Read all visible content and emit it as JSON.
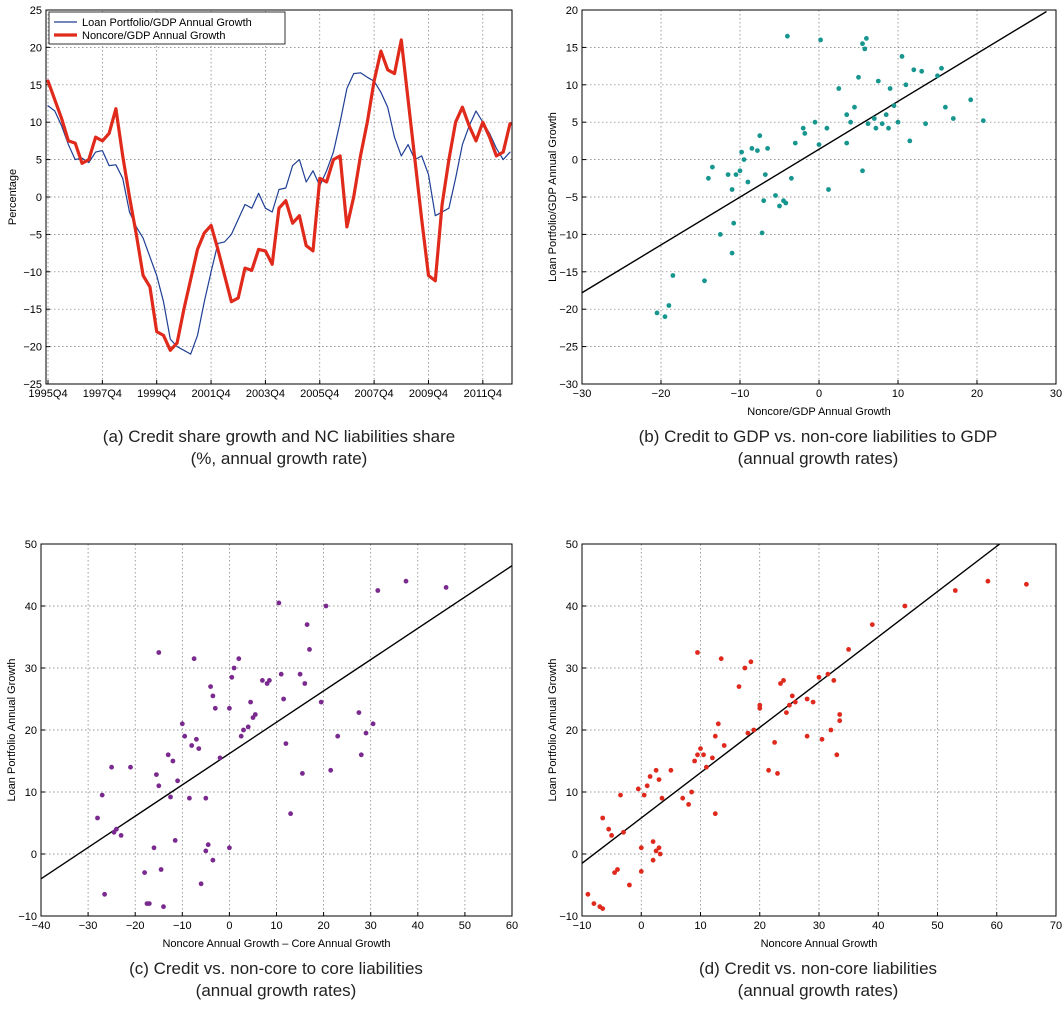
{
  "chart_data": [
    {
      "id": "a",
      "type": "line",
      "caption_lines": [
        "(a) Credit share growth and NC liabilities share",
        "(%, annual growth rate)"
      ],
      "title": "",
      "xlabel": "",
      "ylabel": "Percentage",
      "ylim": [
        -25,
        25
      ],
      "yticks": [
        -25,
        -20,
        -15,
        -10,
        -5,
        0,
        5,
        10,
        15,
        20,
        25
      ],
      "x_tick_labels": [
        "1995Q4",
        "1997Q4",
        "1999Q4",
        "2001Q4",
        "2003Q4",
        "2005Q4",
        "2007Q4",
        "2009Q4",
        "2011Q4"
      ],
      "legend_position": "top-left",
      "grid": true,
      "series": [
        {
          "name": "Loan Portfolio/GDP Annual Growth",
          "color": "#1f3f95",
          "values": [
            12.2,
            11.5,
            9.5,
            7.0,
            5.0,
            5.2,
            4.6,
            6.0,
            6.2,
            4.2,
            4.3,
            2.5,
            -2.0,
            -4.0,
            -5.5,
            -8.0,
            -10.5,
            -14.0,
            -19.0,
            -20.0,
            -20.5,
            -21.0,
            -18.5,
            -14.0,
            -10.0,
            -6.2,
            -6.0,
            -5.0,
            -3.0,
            -1.0,
            -1.5,
            0.5,
            -1.5,
            -2.0,
            1.0,
            1.2,
            4.2,
            5.0,
            2.0,
            3.5,
            1.5,
            3.5,
            6.0,
            10.0,
            14.5,
            16.5,
            16.6,
            16.0,
            15.5,
            14.0,
            12.0,
            8.0,
            5.5,
            7.0,
            5.0,
            5.5,
            3.0,
            -2.5,
            -2.0,
            -1.5,
            2.5,
            7.0,
            9.5,
            11.5,
            10.0,
            8.5,
            6.5,
            5.0,
            6.0
          ]
        },
        {
          "name": "Noncore/GDP Annual Growth",
          "color": "#e02a1b",
          "values": [
            15.5,
            13.0,
            10.5,
            7.5,
            7.2,
            4.5,
            5.0,
            8.0,
            7.5,
            8.5,
            11.8,
            5.5,
            0.0,
            -5.0,
            -10.5,
            -12.0,
            -18.0,
            -18.5,
            -20.5,
            -19.5,
            -15.0,
            -11.0,
            -7.0,
            -4.8,
            -3.8,
            -7.0,
            -10.5,
            -14.0,
            -13.5,
            -9.5,
            -9.8,
            -7.0,
            -7.2,
            -9.0,
            -1.5,
            -0.5,
            -3.5,
            -2.5,
            -6.5,
            -7.2,
            2.5,
            2.0,
            5.0,
            5.5,
            -4.0,
            0.0,
            5.5,
            10.0,
            15.5,
            19.5,
            17.0,
            16.5,
            21.0,
            13.0,
            5.0,
            -3.0,
            -10.5,
            -11.2,
            -1.0,
            5.0,
            10.0,
            12.0,
            9.5,
            7.5,
            10.0,
            8.0,
            5.5,
            6.0,
            9.8
          ]
        }
      ]
    },
    {
      "id": "b",
      "type": "scatter",
      "caption_lines": [
        "(b) Credit to GDP vs. non-core liabilities to GDP",
        "(annual growth rates)"
      ],
      "title": "",
      "xlabel": "Noncore/GDP Annual Growth",
      "ylabel": "Loan Portfolio/GDP Annual Growth",
      "xlim": [
        -30,
        30
      ],
      "ylim": [
        -30,
        20
      ],
      "xticks": [
        -30,
        -20,
        -10,
        0,
        10,
        20,
        30
      ],
      "yticks": [
        -30,
        -25,
        -20,
        -15,
        -10,
        -5,
        0,
        5,
        10,
        15,
        20
      ],
      "grid": true,
      "marker_color": "#16968e",
      "fit_line": [
        [
          -30,
          -17.8
        ],
        [
          28.8,
          19.8
        ]
      ],
      "points": [
        [
          -20.5,
          -20.5
        ],
        [
          -19.5,
          -21.0
        ],
        [
          -19.0,
          -19.5
        ],
        [
          -18.5,
          -15.5
        ],
        [
          -14.5,
          -16.2
        ],
        [
          -14.0,
          -2.5
        ],
        [
          -13.5,
          -1.0
        ],
        [
          -12.5,
          -10.0
        ],
        [
          -11.5,
          -2.0
        ],
        [
          -11.0,
          -12.5
        ],
        [
          -11.0,
          -4.0
        ],
        [
          -10.8,
          -8.5
        ],
        [
          -10.5,
          -2.0
        ],
        [
          -10.0,
          -1.5
        ],
        [
          -9.8,
          1.0
        ],
        [
          -9.5,
          0.0
        ],
        [
          -9.0,
          -3.0
        ],
        [
          -8.5,
          1.5
        ],
        [
          -7.8,
          1.2
        ],
        [
          -7.5,
          3.2
        ],
        [
          -7.2,
          -9.8
        ],
        [
          -7.0,
          -5.5
        ],
        [
          -6.8,
          -2.0
        ],
        [
          -6.5,
          1.5
        ],
        [
          -5.5,
          -4.8
        ],
        [
          -5.0,
          -6.2
        ],
        [
          -4.5,
          -5.5
        ],
        [
          -4.2,
          -5.8
        ],
        [
          -4.0,
          16.5
        ],
        [
          -3.5,
          -2.5
        ],
        [
          -3.0,
          2.2
        ],
        [
          -2.0,
          4.2
        ],
        [
          -1.8,
          3.5
        ],
        [
          -0.5,
          5.0
        ],
        [
          0.0,
          2.0
        ],
        [
          0.2,
          16.0
        ],
        [
          1.0,
          4.2
        ],
        [
          1.2,
          -4.0
        ],
        [
          2.5,
          9.5
        ],
        [
          3.5,
          2.2
        ],
        [
          3.5,
          6.0
        ],
        [
          4.0,
          5.0
        ],
        [
          4.5,
          7.0
        ],
        [
          5.0,
          11.0
        ],
        [
          5.5,
          15.5
        ],
        [
          5.8,
          14.8
        ],
        [
          5.5,
          -1.5
        ],
        [
          6.0,
          16.2
        ],
        [
          6.2,
          4.8
        ],
        [
          7.0,
          5.5
        ],
        [
          7.2,
          4.2
        ],
        [
          7.5,
          10.5
        ],
        [
          8.0,
          4.8
        ],
        [
          8.5,
          6.0
        ],
        [
          8.8,
          4.2
        ],
        [
          9.0,
          9.5
        ],
        [
          9.5,
          7.2
        ],
        [
          10.0,
          5.0
        ],
        [
          10.5,
          13.8
        ],
        [
          11.0,
          10.0
        ],
        [
          11.5,
          2.5
        ],
        [
          12.0,
          12.0
        ],
        [
          13.0,
          11.8
        ],
        [
          13.5,
          4.8
        ],
        [
          15.0,
          11.2
        ],
        [
          15.5,
          12.2
        ],
        [
          16.0,
          7.0
        ],
        [
          17.0,
          5.5
        ],
        [
          19.2,
          8.0
        ],
        [
          20.8,
          5.2
        ]
      ]
    },
    {
      "id": "c",
      "type": "scatter",
      "caption_lines": [
        "(c) Credit vs. non-core to core liabilities",
        "(annual growth rates)"
      ],
      "title": "",
      "xlabel": "Noncore Annual Growth – Core Annual Growth",
      "ylabel": "Loan Portfolio Annual Growth",
      "xlim": [
        -40,
        60
      ],
      "ylim": [
        -10,
        50
      ],
      "xticks": [
        -40,
        -30,
        -20,
        -10,
        0,
        10,
        20,
        30,
        40,
        50,
        60
      ],
      "yticks": [
        -10,
        0,
        10,
        20,
        30,
        40,
        50
      ],
      "grid": true,
      "marker_color": "#7a2a8e",
      "fit_line": [
        [
          -40,
          -4.0
        ],
        [
          60,
          46.5
        ]
      ],
      "points": [
        [
          -28.0,
          5.8
        ],
        [
          -27.0,
          9.5
        ],
        [
          -26.5,
          -6.5
        ],
        [
          -25.0,
          14.0
        ],
        [
          -24.5,
          3.5
        ],
        [
          -24.0,
          4.0
        ],
        [
          -23.0,
          3.0
        ],
        [
          -21.0,
          14.0
        ],
        [
          -18.0,
          -3.0
        ],
        [
          -17.5,
          -8.0
        ],
        [
          -17.0,
          -8.0
        ],
        [
          -16.0,
          1.0
        ],
        [
          -15.5,
          12.8
        ],
        [
          -15.0,
          32.5
        ],
        [
          -15.0,
          11.0
        ],
        [
          -14.5,
          -2.5
        ],
        [
          -14.0,
          -8.5
        ],
        [
          -13.0,
          16.0
        ],
        [
          -12.5,
          9.2
        ],
        [
          -12.0,
          15.0
        ],
        [
          -11.5,
          2.2
        ],
        [
          -11.0,
          11.8
        ],
        [
          -10.0,
          21.0
        ],
        [
          -9.5,
          19.0
        ],
        [
          -8.5,
          9.0
        ],
        [
          -8.0,
          17.5
        ],
        [
          -7.5,
          31.5
        ],
        [
          -7.0,
          18.5
        ],
        [
          -6.5,
          17.0
        ],
        [
          -6.0,
          -4.8
        ],
        [
          -5.0,
          9.0
        ],
        [
          -5.0,
          0.5
        ],
        [
          -4.5,
          1.5
        ],
        [
          -4.0,
          27.0
        ],
        [
          -3.5,
          25.5
        ],
        [
          -3.5,
          -1.0
        ],
        [
          -3.0,
          23.5
        ],
        [
          -2.0,
          15.5
        ],
        [
          0.0,
          23.5
        ],
        [
          0.0,
          1.0
        ],
        [
          0.5,
          28.5
        ],
        [
          1.0,
          30.0
        ],
        [
          2.0,
          31.5
        ],
        [
          2.5,
          19.0
        ],
        [
          3.0,
          20.0
        ],
        [
          4.0,
          20.5
        ],
        [
          4.5,
          24.5
        ],
        [
          5.0,
          22.0
        ],
        [
          5.5,
          22.5
        ],
        [
          7.0,
          28.0
        ],
        [
          8.0,
          27.5
        ],
        [
          8.5,
          28.0
        ],
        [
          10.5,
          40.5
        ],
        [
          11.0,
          29.0
        ],
        [
          11.5,
          25.0
        ],
        [
          12.0,
          17.8
        ],
        [
          13.0,
          6.5
        ],
        [
          15.0,
          29.0
        ],
        [
          15.5,
          13.0
        ],
        [
          16.0,
          27.5
        ],
        [
          16.5,
          37.0
        ],
        [
          17.0,
          33.0
        ],
        [
          19.5,
          24.5
        ],
        [
          20.5,
          40.0
        ],
        [
          21.5,
          13.5
        ],
        [
          23.0,
          19.0
        ],
        [
          27.5,
          22.8
        ],
        [
          28.0,
          16.0
        ],
        [
          29.0,
          19.5
        ],
        [
          30.5,
          21.0
        ],
        [
          31.5,
          42.5
        ],
        [
          37.5,
          44.0
        ],
        [
          46.0,
          43.0
        ]
      ]
    },
    {
      "id": "d",
      "type": "scatter",
      "caption_lines": [
        "(d) Credit vs. non-core liabilities",
        "(annual growth rates)"
      ],
      "title": "",
      "xlabel": "Noncore Annual Growth",
      "ylabel": "Loan Portfolio Annual Growth",
      "xlim": [
        -10,
        70
      ],
      "ylim": [
        -10,
        50
      ],
      "xticks": [
        -10,
        0,
        10,
        20,
        30,
        40,
        50,
        60,
        70
      ],
      "yticks": [
        -10,
        0,
        10,
        20,
        30,
        40,
        50
      ],
      "grid": true,
      "marker_color": "#e0291d",
      "fit_line": [
        [
          -10,
          -1.5
        ],
        [
          60.5,
          50
        ]
      ],
      "points": [
        [
          -9.0,
          -6.5
        ],
        [
          -8.0,
          -8.0
        ],
        [
          -7.0,
          -8.5
        ],
        [
          -6.5,
          5.8
        ],
        [
          -6.5,
          -8.8
        ],
        [
          -5.5,
          4.0
        ],
        [
          -5.0,
          3.0
        ],
        [
          -4.5,
          -3.0
        ],
        [
          -4.0,
          -2.5
        ],
        [
          -3.5,
          9.5
        ],
        [
          -3.0,
          3.5
        ],
        [
          -2.0,
          -5.0
        ],
        [
          -0.5,
          10.5
        ],
        [
          0.0,
          -2.8
        ],
        [
          0.0,
          1.0
        ],
        [
          0.5,
          9.5
        ],
        [
          1.0,
          11.0
        ],
        [
          1.5,
          12.5
        ],
        [
          2.0,
          2.0
        ],
        [
          2.0,
          -1.0
        ],
        [
          2.5,
          13.5
        ],
        [
          2.5,
          0.5
        ],
        [
          3.0,
          12.0
        ],
        [
          3.0,
          1.0
        ],
        [
          3.2,
          0.0
        ],
        [
          3.5,
          9.0
        ],
        [
          5.0,
          13.5
        ],
        [
          7.0,
          9.0
        ],
        [
          8.0,
          8.0
        ],
        [
          8.5,
          10.0
        ],
        [
          9.0,
          15.0
        ],
        [
          9.5,
          32.5
        ],
        [
          9.5,
          16.0
        ],
        [
          10.0,
          17.0
        ],
        [
          10.5,
          16.0
        ],
        [
          11.0,
          14.0
        ],
        [
          12.0,
          15.5
        ],
        [
          12.5,
          19.0
        ],
        [
          12.5,
          6.5
        ],
        [
          13.0,
          21.0
        ],
        [
          13.5,
          31.5
        ],
        [
          14.0,
          17.5
        ],
        [
          16.5,
          27.0
        ],
        [
          17.5,
          30.0
        ],
        [
          18.0,
          19.5
        ],
        [
          18.5,
          31.0
        ],
        [
          19.0,
          20.0
        ],
        [
          20.0,
          24.0
        ],
        [
          20.0,
          23.5
        ],
        [
          21.5,
          13.5
        ],
        [
          22.5,
          18.0
        ],
        [
          23.0,
          13.0
        ],
        [
          23.5,
          27.5
        ],
        [
          24.0,
          28.0
        ],
        [
          24.5,
          22.8
        ],
        [
          25.0,
          24.0
        ],
        [
          25.5,
          25.5
        ],
        [
          26.0,
          24.5
        ],
        [
          28.0,
          25.0
        ],
        [
          28.0,
          19.0
        ],
        [
          29.0,
          24.5
        ],
        [
          30.0,
          28.5
        ],
        [
          30.5,
          18.5
        ],
        [
          31.5,
          29.0
        ],
        [
          32.0,
          20.0
        ],
        [
          32.5,
          28.0
        ],
        [
          33.0,
          16.0
        ],
        [
          33.5,
          22.5
        ],
        [
          33.5,
          21.5
        ],
        [
          35.0,
          33.0
        ],
        [
          39.0,
          37.0
        ],
        [
          44.5,
          40.0
        ],
        [
          53.0,
          42.5
        ],
        [
          58.5,
          44.0
        ],
        [
          65.0,
          43.5
        ]
      ]
    }
  ]
}
